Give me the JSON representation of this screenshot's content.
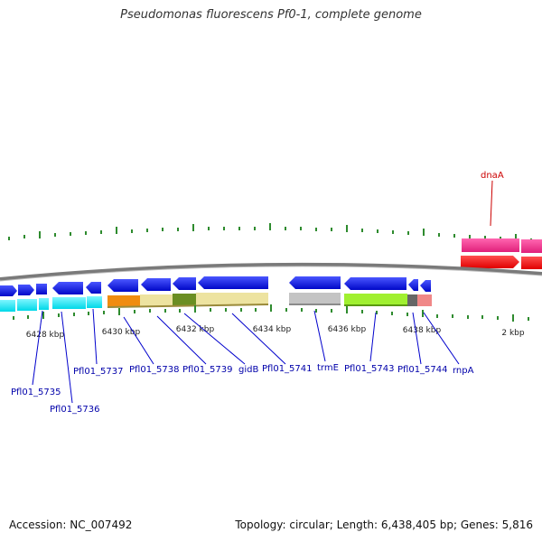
{
  "title": "Pseudomonas fluorescens Pf0-1, complete genome",
  "footer": {
    "accession": "Accession: NC_007492",
    "topology": "Topology: circular; Length: 6,438,405 bp; Genes: 5,816"
  },
  "scale_labels": [
    "6428 kbp",
    "6430 kbp",
    "6432 kbp",
    "6434 kbp",
    "6436 kbp",
    "6438 kbp",
    "2 kbp"
  ],
  "gene_labels": [
    {
      "text": "Pfl01_5735",
      "color": "#0000aa"
    },
    {
      "text": "Pfl01_5736",
      "color": "#0000aa"
    },
    {
      "text": "Pfl01_5737",
      "color": "#0000aa"
    },
    {
      "text": "Pfl01_5738",
      "color": "#0000aa"
    },
    {
      "text": "Pfl01_5739",
      "color": "#0000aa"
    },
    {
      "text": "gidB",
      "color": "#0000aa"
    },
    {
      "text": "Pfl01_5741",
      "color": "#0000aa"
    },
    {
      "text": "trmE",
      "color": "#0000aa"
    },
    {
      "text": "Pfl01_5743",
      "color": "#0000aa"
    },
    {
      "text": "Pfl01_5744",
      "color": "#0000aa"
    },
    {
      "text": "rnpA",
      "color": "#0000aa"
    },
    {
      "text": "dnaA",
      "color": "#cc0000"
    }
  ],
  "colors": {
    "backbone": "#888888",
    "forward_gene": "#0a14e6",
    "reverse_gene": "#00e5ee",
    "tick": "#2e8b2e",
    "dnaA_gene": "#ff2020",
    "dnaA_feature": "#ff2f8f"
  }
}
